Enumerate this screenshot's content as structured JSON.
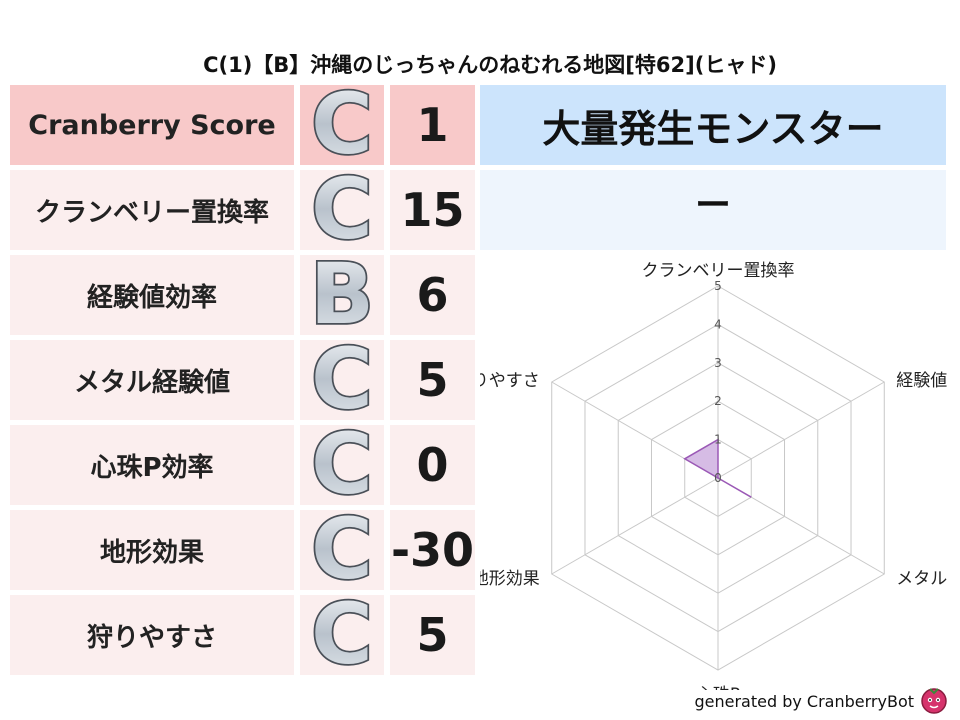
{
  "title": "C(1)【B】沖縄のじっちゃんのねむれる地図[特62](ヒャド)",
  "rows": [
    {
      "label": "Cranberry Score",
      "grade": "C",
      "value": "1"
    },
    {
      "label": "クランベリー置換率",
      "grade": "C",
      "value": "15"
    },
    {
      "label": "経験値効率",
      "grade": "B",
      "value": "6"
    },
    {
      "label": "メタル経験値",
      "grade": "C",
      "value": "5"
    },
    {
      "label": "心珠P効率",
      "grade": "C",
      "value": "0"
    },
    {
      "label": "地形効果",
      "grade": "C",
      "value": "-30"
    },
    {
      "label": "狩りやすさ",
      "grade": "C",
      "value": "5"
    }
  ],
  "monster": {
    "header": "大量発生モンスター",
    "value": "ー"
  },
  "chart_data": {
    "type": "radar",
    "axes": [
      "クランベリー置換率",
      "経験値",
      "メタル",
      "心珠P",
      "地形効果",
      "狩りやすさ"
    ],
    "values": [
      1,
      0,
      1,
      0,
      0,
      1
    ],
    "ticks": [
      "0",
      "1",
      "2",
      "3",
      "4",
      "5"
    ],
    "range": [
      0,
      5
    ],
    "fill_color": "#c8a5dc",
    "line_color": "#9b59b6"
  },
  "footer": "generated by CranberryBot",
  "colors": {
    "score_row": "#f8c9c9",
    "rows": "#fbeeee",
    "monster_head": "#cce4fc",
    "monster_value": "#eef5fd"
  }
}
